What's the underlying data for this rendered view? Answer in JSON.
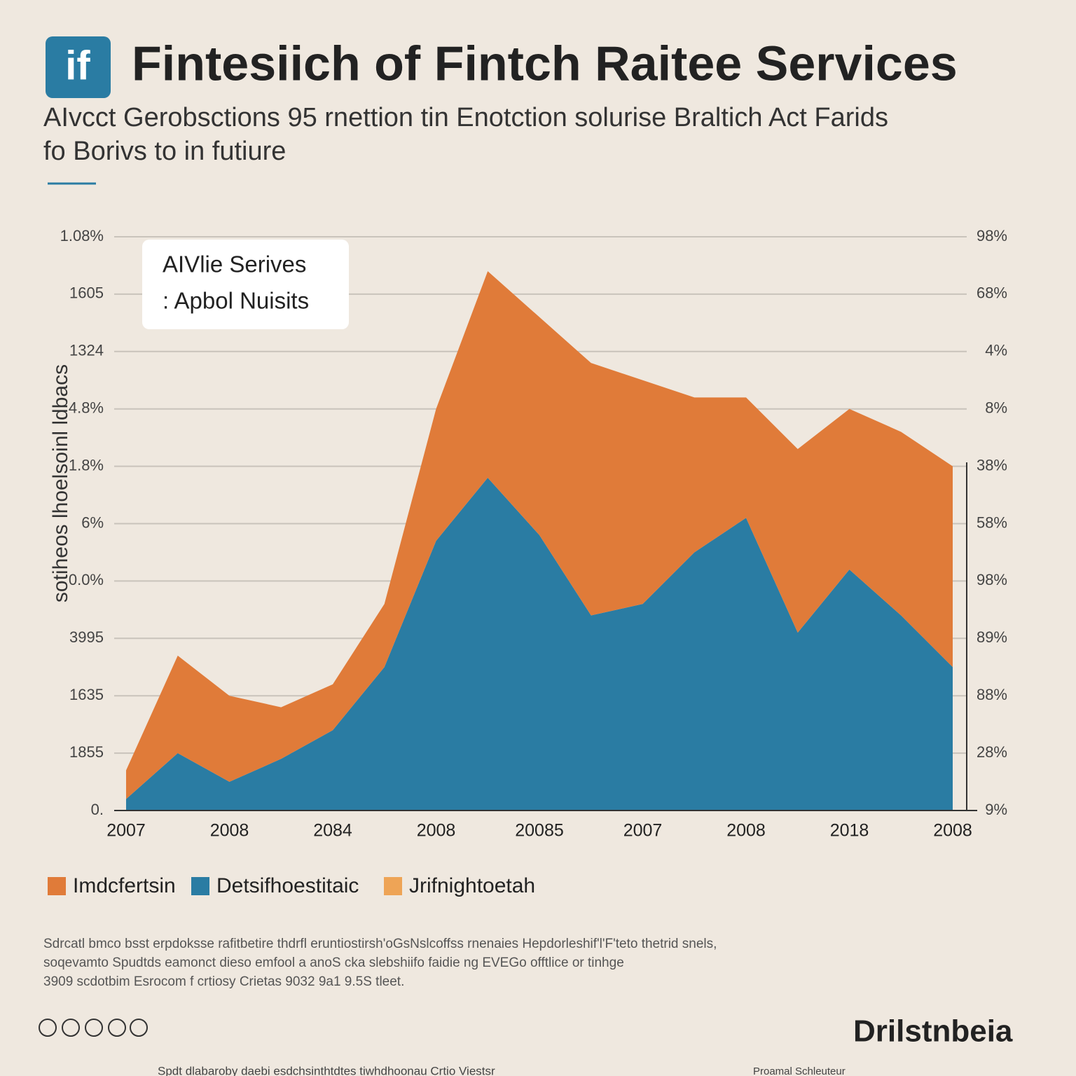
{
  "header": {
    "logo": "if",
    "title": "Fintesiich of Fintch Raitee Services",
    "subtitle": [
      "AIvcct Gerobsctions 95 rnettion tin Enotction solurise Braltich Act Farids",
      "fo Borivs to in futiure"
    ]
  },
  "chart_data": {
    "type": "stacked-area",
    "y_axis_title": "sotiheos lhoelsoinl ldbacs",
    "left_labels": [
      "0.",
      "1855",
      "1635",
      "3995",
      "0.0%",
      "6%",
      "1.8%",
      "4.8%",
      "1324",
      "1605",
      "1.08%"
    ],
    "right_labels": [
      "9%",
      "28%",
      "88%",
      "89%",
      "98%",
      "58%",
      "38%",
      "8%",
      "4%",
      "68%",
      "98%"
    ],
    "ylim": [
      0,
      100
    ],
    "categories": [
      "2007",
      null,
      "2008",
      null,
      "2084",
      null,
      "2008",
      null,
      "20085",
      null,
      "2007",
      null,
      "2008",
      null,
      "2018",
      null,
      "2008"
    ],
    "series": [
      {
        "name": "Detsifhoestitaic",
        "color": "#2a7ca3",
        "values": [
          2,
          10,
          5,
          9,
          14,
          25,
          47,
          58,
          48,
          34,
          36,
          45,
          51,
          31,
          42,
          34,
          25
        ]
      },
      {
        "name": "Imdcfertsin",
        "color": "#e07b39",
        "values": [
          5,
          17,
          15,
          9,
          8,
          11,
          23,
          36,
          38,
          44,
          39,
          27,
          21,
          32,
          28,
          32,
          35
        ]
      },
      {
        "name": "Jrifnightoetah",
        "color": "#eea456",
        "values": [
          null,
          null,
          null,
          null,
          null,
          null,
          null,
          null,
          null,
          null,
          null,
          null,
          null,
          null,
          null,
          null,
          null
        ]
      }
    ],
    "annotation": [
      "AIVlie Serives",
      ": Apbol Nuisits"
    ],
    "grid": true
  },
  "footer": {
    "notes": [
      "Sdrcatl bmco bsst erpdoksse rafitbetire thdrfl eruntiostirsh'oGsNslcoffss rnenaies Hepdorleshif'l'F'teto thetrid snels,",
      "soqevamto Spudtds eamonct dieso emfool a anoS cka slebshiifo faidie ng EVEGo offtlice or tinhge",
      "3909 scdotbim Esrocom f crtiosy Crietas 9032 9a1 9.5S tleet."
    ],
    "credits": "Spdt dlabaroby daebi esdchsinthtdtes tiwhdhoonau Crtio Viestsr",
    "brand": "Drilstnbeia",
    "brand_sub": "Proamal Schleuteur"
  }
}
